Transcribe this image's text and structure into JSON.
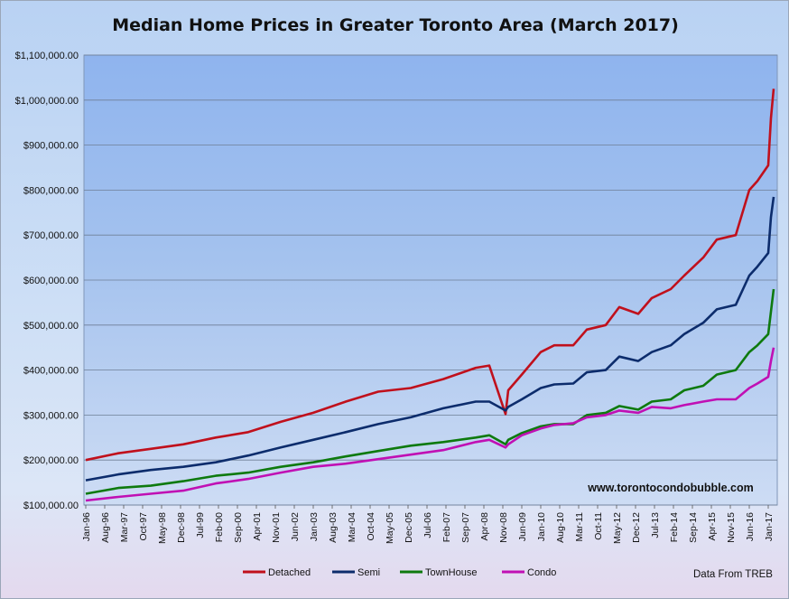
{
  "chart_data": {
    "type": "line",
    "title": "Median Home Prices in Greater Toronto Area (March 2017)",
    "xlabel": "",
    "ylabel": "",
    "ylim": [
      100000,
      1100000
    ],
    "yticks": [
      100000,
      200000,
      300000,
      400000,
      500000,
      600000,
      700000,
      800000,
      900000,
      1000000,
      1100000
    ],
    "ytick_labels": [
      "$100,000.00",
      "$200,000.00",
      "$300,000.00",
      "$400,000.00",
      "$500,000.00",
      "$600,000.00",
      "$700,000.00",
      "$800,000.00",
      "$900,000.00",
      "$1,000,000.00",
      "$1,100,000.00"
    ],
    "xtick_labels": [
      "Jan-96",
      "Aug-96",
      "Mar-97",
      "Oct-97",
      "May-98",
      "Dec-98",
      "Jul-99",
      "Feb-00",
      "Sep-00",
      "Apr-01",
      "Nov-01",
      "Jun-02",
      "Jan-03",
      "Aug-03",
      "Mar-04",
      "Oct-04",
      "May-05",
      "Dec-05",
      "Jul-06",
      "Feb-07",
      "Sep-07",
      "Apr-08",
      "Nov-08",
      "Jun-09",
      "Jan-10",
      "Aug-10",
      "Mar-11",
      "Oct-11",
      "May-12",
      "Dec-12",
      "Jul-13",
      "Feb-14",
      "Sep-14",
      "Apr-15",
      "Nov-15",
      "Jun-16",
      "Jan-17"
    ],
    "x_start": "1996-01",
    "x_end": "2017-03",
    "grid": true,
    "legend_position": "bottom",
    "series": [
      {
        "name": "Detached",
        "color": "#c0101c",
        "x": [
          "1996-01",
          "1997-01",
          "1998-01",
          "1999-01",
          "2000-01",
          "2001-01",
          "2002-01",
          "2003-01",
          "2004-01",
          "2005-01",
          "2006-01",
          "2007-01",
          "2008-01",
          "2008-06",
          "2008-12",
          "2009-01",
          "2009-06",
          "2010-01",
          "2010-06",
          "2011-01",
          "2011-06",
          "2012-01",
          "2012-06",
          "2013-01",
          "2013-06",
          "2014-01",
          "2014-06",
          "2015-01",
          "2015-06",
          "2016-01",
          "2016-06",
          "2016-09",
          "2017-01",
          "2017-02",
          "2017-03"
        ],
        "y": [
          200000,
          215000,
          225000,
          235000,
          250000,
          262000,
          285000,
          305000,
          330000,
          352000,
          360000,
          380000,
          405000,
          410000,
          302000,
          355000,
          390000,
          440000,
          455000,
          455000,
          490000,
          500000,
          540000,
          525000,
          560000,
          580000,
          610000,
          650000,
          690000,
          700000,
          800000,
          820000,
          855000,
          960000,
          1025000
        ]
      },
      {
        "name": "Semi",
        "color": "#0c2c6c",
        "x": [
          "1996-01",
          "1997-01",
          "1998-01",
          "1999-01",
          "2000-01",
          "2001-01",
          "2002-01",
          "2003-01",
          "2004-01",
          "2005-01",
          "2006-01",
          "2007-01",
          "2008-01",
          "2008-06",
          "2008-12",
          "2009-01",
          "2009-06",
          "2010-01",
          "2010-06",
          "2011-01",
          "2011-06",
          "2012-01",
          "2012-06",
          "2013-01",
          "2013-06",
          "2014-01",
          "2014-06",
          "2015-01",
          "2015-06",
          "2016-01",
          "2016-06",
          "2016-09",
          "2017-01",
          "2017-02",
          "2017-03"
        ],
        "y": [
          155000,
          168000,
          178000,
          185000,
          195000,
          210000,
          228000,
          245000,
          262000,
          280000,
          295000,
          315000,
          330000,
          330000,
          310000,
          318000,
          335000,
          360000,
          368000,
          370000,
          395000,
          400000,
          430000,
          420000,
          440000,
          455000,
          480000,
          505000,
          535000,
          545000,
          610000,
          630000,
          660000,
          740000,
          785000
        ]
      },
      {
        "name": "TownHouse",
        "color": "#0e7a0e",
        "x": [
          "1996-01",
          "1997-01",
          "1998-01",
          "1999-01",
          "2000-01",
          "2001-01",
          "2002-01",
          "2003-01",
          "2004-01",
          "2005-01",
          "2006-01",
          "2007-01",
          "2008-01",
          "2008-06",
          "2008-12",
          "2009-01",
          "2009-06",
          "2010-01",
          "2010-06",
          "2011-01",
          "2011-06",
          "2012-01",
          "2012-06",
          "2013-01",
          "2013-06",
          "2014-01",
          "2014-06",
          "2015-01",
          "2015-06",
          "2016-01",
          "2016-06",
          "2016-09",
          "2017-01",
          "2017-02",
          "2017-03"
        ],
        "y": [
          125000,
          138000,
          143000,
          153000,
          165000,
          172000,
          185000,
          195000,
          208000,
          220000,
          232000,
          240000,
          250000,
          255000,
          235000,
          245000,
          260000,
          275000,
          280000,
          280000,
          300000,
          305000,
          320000,
          312000,
          330000,
          335000,
          355000,
          365000,
          390000,
          400000,
          440000,
          455000,
          480000,
          530000,
          580000
        ]
      },
      {
        "name": "Condo",
        "color": "#c010b4",
        "x": [
          "1996-01",
          "1997-01",
          "1998-01",
          "1999-01",
          "2000-01",
          "2001-01",
          "2002-01",
          "2003-01",
          "2004-01",
          "2005-01",
          "2006-01",
          "2007-01",
          "2008-01",
          "2008-06",
          "2008-12",
          "2009-01",
          "2009-06",
          "2010-01",
          "2010-06",
          "2011-01",
          "2011-06",
          "2012-01",
          "2012-06",
          "2013-01",
          "2013-06",
          "2014-01",
          "2014-06",
          "2015-01",
          "2015-06",
          "2016-01",
          "2016-06",
          "2016-09",
          "2017-01",
          "2017-02",
          "2017-03"
        ],
        "y": [
          110000,
          118000,
          125000,
          132000,
          148000,
          158000,
          172000,
          185000,
          192000,
          202000,
          212000,
          222000,
          240000,
          245000,
          228000,
          235000,
          255000,
          270000,
          278000,
          282000,
          295000,
          300000,
          310000,
          305000,
          318000,
          315000,
          322000,
          330000,
          335000,
          335000,
          360000,
          370000,
          385000,
          420000,
          450000
        ]
      }
    ],
    "annotations": [
      "www.torontocondobubble.com",
      "Data From TREB"
    ]
  }
}
